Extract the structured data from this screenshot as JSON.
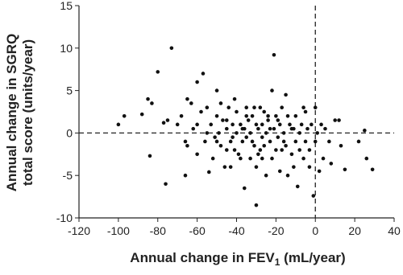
{
  "chart_data": {
    "type": "scatter",
    "x_label": {
      "text": "Annual change in FEV",
      "subscript": "1",
      "suffix": " (mL/year)"
    },
    "y_label": [
      "Annual change in SGRQ",
      "total score (units/year)"
    ],
    "x": [
      -100,
      -97,
      -88,
      -85,
      -83,
      -84,
      -80,
      -77,
      -76,
      -73,
      -75,
      -70,
      -68,
      -66,
      -65,
      -63,
      -62,
      -60,
      -60,
      -58,
      -57,
      -56,
      -55,
      -55,
      -54,
      -52,
      -51,
      -50,
      -50,
      -49,
      -48,
      -47,
      -46,
      -45,
      -45,
      -44,
      -43,
      -42,
      -42,
      -41,
      -40,
      -40,
      -39,
      -38,
      -37,
      -37,
      -36,
      -35,
      -35,
      -34,
      -33,
      -33,
      -32,
      -31,
      -30,
      -30,
      -30,
      -29,
      -28,
      -28,
      -27,
      -27,
      -26,
      -25,
      -25,
      -24,
      -23,
      -22,
      -22,
      -21,
      -21,
      -20,
      -20,
      -19,
      -18,
      -18,
      -17,
      -16,
      -15,
      -15,
      -14,
      -13,
      -12,
      -12,
      -11,
      -10,
      -10,
      -9,
      -8,
      -7,
      -6,
      -5,
      -5,
      -4,
      -3,
      -2,
      -1,
      0,
      1,
      2,
      3,
      4,
      5,
      7,
      8,
      10,
      12,
      13,
      15,
      22,
      25,
      26,
      29,
      -60,
      -65,
      -53,
      -48,
      -43,
      -38,
      -35,
      -32,
      -29,
      -26,
      -24,
      -19,
      -17,
      -14,
      -8,
      -6,
      -3,
      0,
      -50,
      -45,
      -41,
      -36,
      -31,
      -27,
      -23,
      -16,
      -11,
      -66
    ],
    "values": [
      1,
      2,
      2.2,
      4,
      3.5,
      -2.7,
      7.2,
      1.2,
      -6,
      10,
      1.5,
      1,
      2,
      -1,
      4,
      3.5,
      0.5,
      1,
      6,
      2.5,
      7,
      -1,
      0,
      3,
      -4.6,
      -3,
      -0.5,
      5,
      2,
      0,
      -1.5,
      1.5,
      -4,
      0.5,
      -2,
      3,
      -1,
      1,
      -0.5,
      4,
      0,
      2.5,
      -2.5,
      1,
      -1,
      0.5,
      -6.5,
      3,
      -0.5,
      1.5,
      -3,
      0,
      2,
      -1.5,
      -8.5,
      1,
      -4,
      0.5,
      3,
      -2,
      1,
      -0.5,
      2.5,
      -5,
      0,
      1.5,
      -1,
      5,
      -3,
      9.2,
      0.5,
      -2,
      2,
      -0.5,
      -4.5,
      1,
      3,
      0,
      -1.5,
      4.5,
      -5,
      1,
      -2.5,
      0.5,
      -4,
      2,
      -1,
      -6.3,
      0,
      1,
      -3,
      -1,
      2.5,
      0.5,
      -2,
      1,
      -7.4,
      -1,
      0,
      -4.5,
      1,
      -3,
      0.5,
      -1,
      -3.6,
      1.5,
      1.5,
      -1.5,
      -4.3,
      -1,
      0.3,
      -3,
      -4.3,
      -2.5,
      -1.5,
      1,
      3.5,
      -4,
      -3,
      2,
      -1,
      -2.5,
      -1.5,
      2,
      1.5,
      -2,
      2,
      -2,
      3,
      -4,
      3,
      -1,
      1.5,
      -2,
      0.5,
      3,
      -3,
      0.5,
      -1,
      0.5,
      -5
    ],
    "color": "#111111",
    "xlim": [
      -120,
      40
    ],
    "xticks": [
      -120,
      -100,
      -80,
      -60,
      -40,
      -20,
      0,
      20,
      40
    ],
    "ylim": [
      -10,
      15
    ],
    "yticks": [
      -10,
      -5,
      0,
      5,
      10,
      15
    ],
    "hlines": [
      0
    ],
    "vlines": [
      0
    ]
  }
}
